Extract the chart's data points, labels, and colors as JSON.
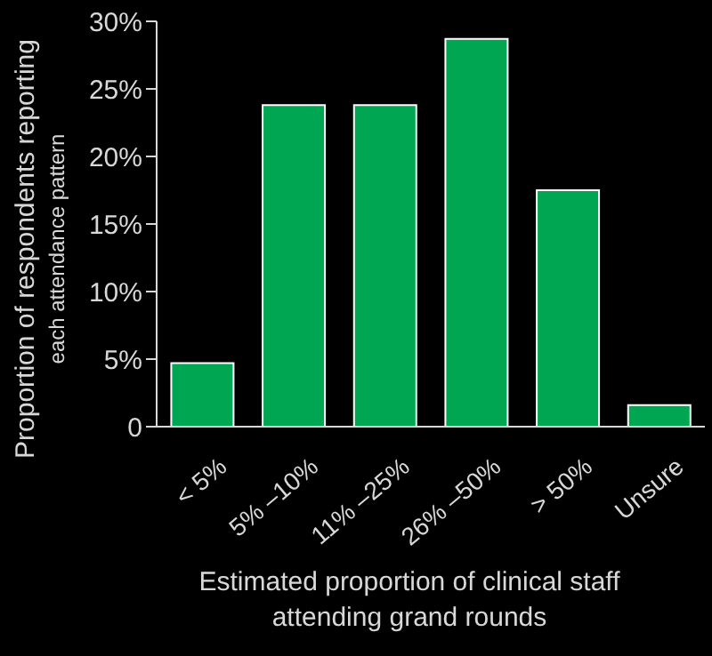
{
  "chart_data": {
    "type": "bar",
    "categories": [
      "< 5%",
      "5% –10%",
      "11% –25%",
      "26% –50%",
      "> 50%",
      "Unsure"
    ],
    "values": [
      4.7,
      23.8,
      23.8,
      28.7,
      17.5,
      1.6
    ],
    "color": "#00a651",
    "xlabel": "Estimated proportion of clinical staff attending grand rounds",
    "ylabel": "Proportion of respondents reporting each attendance pattern",
    "ylim": [
      0,
      30
    ],
    "yticks": [
      {
        "value": 0,
        "label": "0"
      },
      {
        "value": 5,
        "label": "5%"
      },
      {
        "value": 10,
        "label": "10%"
      },
      {
        "value": 15,
        "label": "15%"
      },
      {
        "value": 20,
        "label": "20%"
      },
      {
        "value": 25,
        "label": "25%"
      },
      {
        "value": 30,
        "label": "30%"
      }
    ],
    "grid": false,
    "legend": false
  }
}
